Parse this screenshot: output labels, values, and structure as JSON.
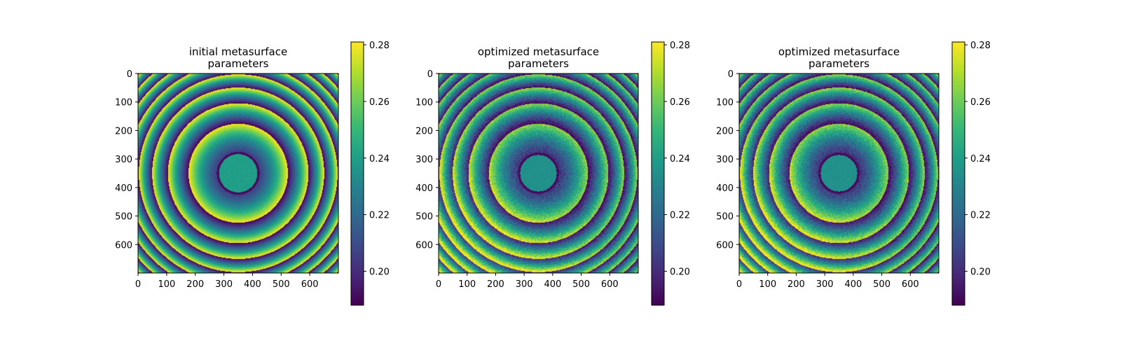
{
  "chart_data": [
    {
      "type": "heatmap",
      "title_lines": [
        "initial metasurface",
        "parameters"
      ],
      "xlabel": "",
      "ylabel": "",
      "xlim": [
        0,
        700
      ],
      "ylim": [
        700,
        0
      ],
      "x_ticks": [
        "0",
        "100",
        "200",
        "300",
        "400",
        "500",
        "600"
      ],
      "y_ticks": [
        "0",
        "100",
        "200",
        "300",
        "400",
        "500",
        "600"
      ],
      "center": [
        350,
        350
      ],
      "pattern": {
        "core_radius": 75,
        "ring_period_scale": 250,
        "noise": 0.05,
        "bright_bias": 0.0,
        "core_value": 0.24
      },
      "colorbar": {
        "range": [
          0.188,
          0.281
        ],
        "ticks": [
          "0.20",
          "0.22",
          "0.24",
          "0.26",
          "0.28"
        ],
        "colormap": "viridis"
      }
    },
    {
      "type": "heatmap",
      "title_lines": [
        "optimized metasurface",
        "parameters"
      ],
      "xlabel": "",
      "ylabel": "",
      "xlim": [
        0,
        700
      ],
      "ylim": [
        700,
        0
      ],
      "x_ticks": [
        "0",
        "100",
        "200",
        "300",
        "400",
        "500",
        "600"
      ],
      "y_ticks": [
        "0",
        "100",
        "200",
        "300",
        "400",
        "500",
        "600"
      ],
      "center": [
        350,
        350
      ],
      "pattern": {
        "core_radius": 72,
        "ring_period_scale": 250,
        "noise": 0.25,
        "bright_bias": 0.35,
        "core_value": 0.235
      },
      "colorbar": {
        "range": [
          0.188,
          0.281
        ],
        "ticks": [
          "0.20",
          "0.22",
          "0.24",
          "0.26",
          "0.28"
        ],
        "colormap": "viridis"
      }
    },
    {
      "type": "heatmap",
      "title_lines": [
        "optimized metasurface",
        "parameters"
      ],
      "xlabel": "",
      "ylabel": "",
      "xlim": [
        0,
        700
      ],
      "ylim": [
        700,
        0
      ],
      "x_ticks": [
        "0",
        "100",
        "200",
        "300",
        "400",
        "500",
        "600"
      ],
      "y_ticks": [
        "0",
        "100",
        "200",
        "300",
        "400",
        "500",
        "600"
      ],
      "center": [
        350,
        350
      ],
      "pattern": {
        "core_radius": 72,
        "ring_period_scale": 250,
        "noise": 0.25,
        "bright_bias": 0.35,
        "core_value": 0.235
      },
      "colorbar": {
        "range": [
          0.188,
          0.281
        ],
        "ticks": [
          "0.20",
          "0.22",
          "0.24",
          "0.26",
          "0.28"
        ],
        "colormap": "viridis"
      }
    }
  ]
}
